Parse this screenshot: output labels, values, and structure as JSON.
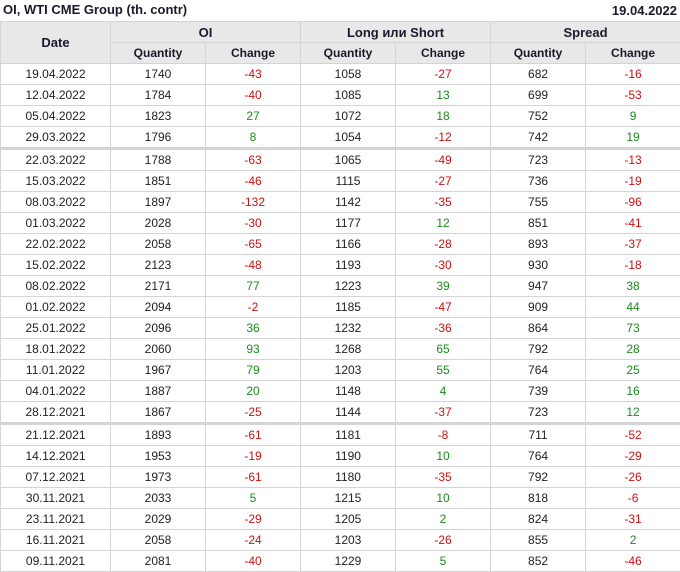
{
  "header": {
    "title": "OI, WTI CME Group (th. contr)",
    "date": "19.04.2022"
  },
  "columns": {
    "date": "Date",
    "groups": [
      "OI",
      "Long или Short",
      "Spread"
    ],
    "sub": [
      "Quantity",
      "Change",
      "Quantity",
      "Change",
      "Quantity",
      "Change"
    ]
  },
  "colors": {
    "negative": "#cc1111",
    "positive": "#1b8c1b",
    "header_bg": "#e8e8e8"
  },
  "rows": [
    [
      "19.04.2022",
      "1740",
      "-43",
      "1058",
      "-27",
      "682",
      "-16"
    ],
    [
      "12.04.2022",
      "1784",
      "-40",
      "1085",
      "13",
      "699",
      "-53"
    ],
    [
      "05.04.2022",
      "1823",
      "27",
      "1072",
      "18",
      "752",
      "9"
    ],
    [
      "29.03.2022",
      "1796",
      "8",
      "1054",
      "-12",
      "742",
      "19"
    ],
    [
      "22.03.2022",
      "1788",
      "-63",
      "1065",
      "-49",
      "723",
      "-13"
    ],
    [
      "15.03.2022",
      "1851",
      "-46",
      "1115",
      "-27",
      "736",
      "-19"
    ],
    [
      "08.03.2022",
      "1897",
      "-132",
      "1142",
      "-35",
      "755",
      "-96"
    ],
    [
      "01.03.2022",
      "2028",
      "-30",
      "1177",
      "12",
      "851",
      "-41"
    ],
    [
      "22.02.2022",
      "2058",
      "-65",
      "1166",
      "-28",
      "893",
      "-37"
    ],
    [
      "15.02.2022",
      "2123",
      "-48",
      "1193",
      "-30",
      "930",
      "-18"
    ],
    [
      "08.02.2022",
      "2171",
      "77",
      "1223",
      "39",
      "947",
      "38"
    ],
    [
      "01.02.2022",
      "2094",
      "-2",
      "1185",
      "-47",
      "909",
      "44"
    ],
    [
      "25.01.2022",
      "2096",
      "36",
      "1232",
      "-36",
      "864",
      "73"
    ],
    [
      "18.01.2022",
      "2060",
      "93",
      "1268",
      "65",
      "792",
      "28"
    ],
    [
      "11.01.2022",
      "1967",
      "79",
      "1203",
      "55",
      "764",
      "25"
    ],
    [
      "04.01.2022",
      "1887",
      "20",
      "1148",
      "4",
      "739",
      "16"
    ],
    [
      "28.12.2021",
      "1867",
      "-25",
      "1144",
      "-37",
      "723",
      "12"
    ],
    [
      "21.12.2021",
      "1893",
      "-61",
      "1181",
      "-8",
      "711",
      "-52"
    ],
    [
      "14.12.2021",
      "1953",
      "-19",
      "1190",
      "10",
      "764",
      "-29"
    ],
    [
      "07.12.2021",
      "1973",
      "-61",
      "1180",
      "-35",
      "792",
      "-26"
    ],
    [
      "30.11.2021",
      "2033",
      "5",
      "1215",
      "10",
      "818",
      "-6"
    ],
    [
      "23.11.2021",
      "2029",
      "-29",
      "1205",
      "2",
      "824",
      "-31"
    ],
    [
      "16.11.2021",
      "2058",
      "-24",
      "1203",
      "-26",
      "855",
      "2"
    ],
    [
      "09.11.2021",
      "2081",
      "-40",
      "1229",
      "5",
      "852",
      "-46"
    ]
  ]
}
